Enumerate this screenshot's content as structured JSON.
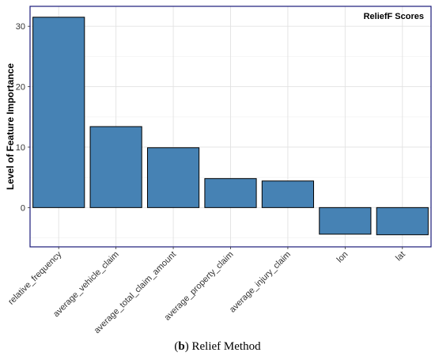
{
  "chart_data": {
    "type": "bar",
    "title": "",
    "legend_label": "ReliefF Scores",
    "legend_position": "top-right",
    "xlabel": "",
    "ylabel": "Level of Feature Importance",
    "categories": [
      "relative_frequency",
      "average_vehicle_claim",
      "average_total_claim_amount",
      "average_property_claim",
      "average_injury_claim",
      "lon",
      "lat"
    ],
    "values": [
      31.5,
      13.4,
      9.9,
      4.8,
      4.4,
      -4.4,
      -4.5
    ],
    "yticks": [
      0,
      10,
      20,
      30
    ],
    "ylim": [
      -6.5,
      33.3
    ],
    "grid": true,
    "bar_color": "#4682B4",
    "bar_edge_color": "#000000"
  },
  "caption": {
    "label": "b",
    "text": " Relief Method"
  }
}
